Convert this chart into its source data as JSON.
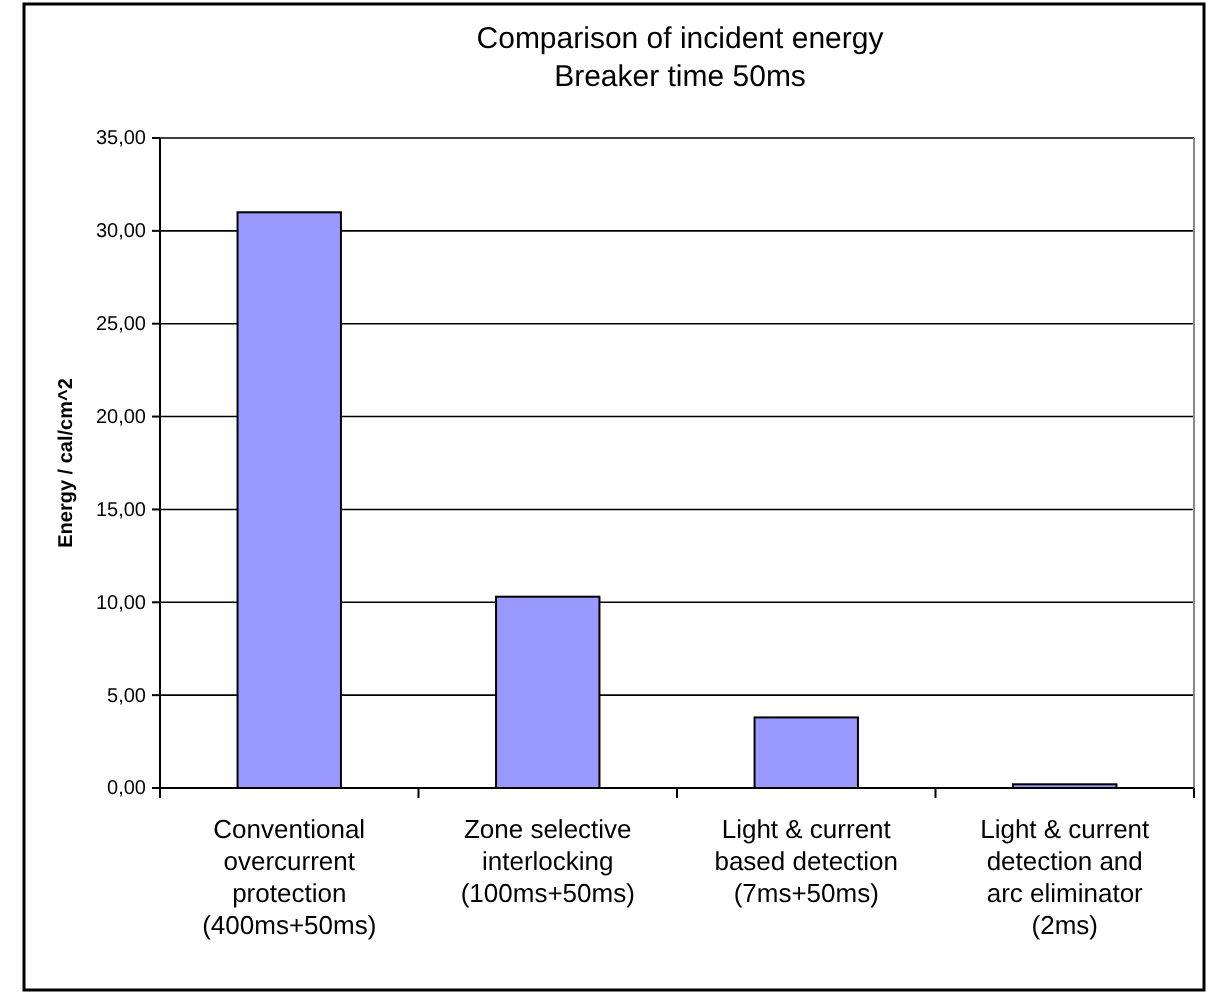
{
  "chart_data": {
    "type": "bar",
    "title": "Comparison of incident energy",
    "subtitle": "Breaker time 50ms",
    "ylabel": "Energy / cal/cm^2",
    "categories": [
      "Conventional overcurrent protection (400ms+50ms)",
      "Zone selective interlocking (100ms+50ms)",
      "Light & current based detection (7ms+50ms)",
      "Light & current detection and arc eliminator (2ms)"
    ],
    "values": [
      31.0,
      10.3,
      3.8,
      0.2
    ],
    "color": "#9999ff",
    "ylim": [
      0,
      35
    ],
    "yticks": [
      {
        "value": 0,
        "label": "0,00"
      },
      {
        "value": 5,
        "label": "5,00"
      },
      {
        "value": 10,
        "label": "10,00"
      },
      {
        "value": 15,
        "label": "15,00"
      },
      {
        "value": 20,
        "label": "20,00"
      },
      {
        "value": 25,
        "label": "25,00"
      },
      {
        "value": 30,
        "label": "30,00"
      },
      {
        "value": 35,
        "label": "35,00"
      }
    ],
    "grid": "y"
  }
}
